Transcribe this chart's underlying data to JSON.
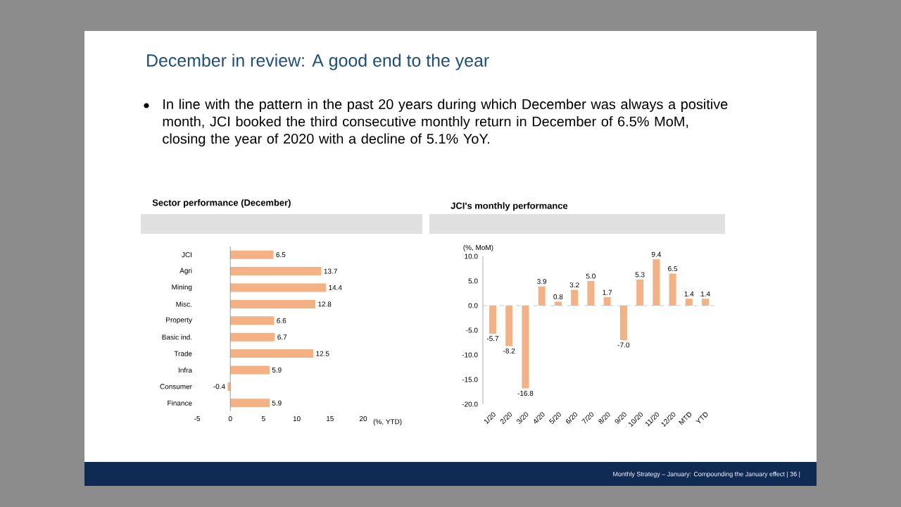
{
  "chart_data": [
    {
      "type": "bar",
      "orientation": "horizontal",
      "title": "Sector performance (December)",
      "xlabel": "(%, YTD)",
      "annotations": [
        "December in review: A good end to the year",
        "In line with the pattern in the past 20 years during which December was always a positive month, JCI booked the third consecutive monthly return in December of 6.5% MoM, closing the year of 2020 with a decline of 5.1% YoY."
      ],
      "categories": [
        "JCI",
        "Agri",
        "Mining",
        "Misc.",
        "Property",
        "Basic ind.",
        "Trade",
        "Infra",
        "Consumer",
        "Finance"
      ],
      "values": [
        6.5,
        13.7,
        14.4,
        12.8,
        6.6,
        6.7,
        12.5,
        5.9,
        -0.4,
        5.9
      ],
      "value_labels": [
        "6.5",
        "13.7",
        "14.4",
        "12.8",
        "6.6",
        "6.7",
        "12.5",
        "5.9",
        "-0.4",
        "5.9"
      ],
      "color": "#f4b183",
      "xlim": [
        -5,
        20
      ],
      "xticks": [
        -5,
        0,
        5,
        10,
        15,
        20
      ]
    },
    {
      "type": "bar",
      "title": "JCI's monthly performance",
      "ylabel": "(%, MoM)",
      "annotations": [
        "Monthly Strategy – January: Compounding the January effect | 36 |"
      ],
      "categories": [
        "1/20",
        "2/20",
        "3/20",
        "4/20",
        "5/20",
        "6/20",
        "7/20",
        "8/20",
        "9/20",
        "10/20",
        "11/20",
        "12/20",
        "MTD",
        "YTD"
      ],
      "values": [
        -5.7,
        -8.2,
        -16.8,
        3.9,
        0.8,
        3.2,
        5.0,
        1.7,
        -7.0,
        5.3,
        9.4,
        6.5,
        1.4,
        1.4
      ],
      "value_labels": [
        "-5.7",
        "-8.2",
        "-16.8",
        "3.9",
        "0.8",
        "3.2",
        "5.0",
        "1.7",
        "-7.0",
        "5.3",
        "9.4",
        "6.5",
        "1.4",
        "1.4"
      ],
      "color": "#f4b183",
      "ylim": [
        -20,
        10
      ],
      "yticks": [
        {
          "value": -20,
          "label": "-20.0"
        },
        {
          "value": -15,
          "label": "-15.0"
        },
        {
          "value": -10,
          "label": "-10.0"
        },
        {
          "value": -5,
          "label": "-5.0"
        },
        {
          "value": 0,
          "label": "0.0"
        },
        {
          "value": 5,
          "label": "5.0"
        },
        {
          "value": 10,
          "label": "10.0"
        }
      ],
      "ref_lines": [
        {
          "axis": "y",
          "value": 0,
          "color": "#9dc3e6",
          "line_style": "dashed"
        }
      ]
    }
  ]
}
